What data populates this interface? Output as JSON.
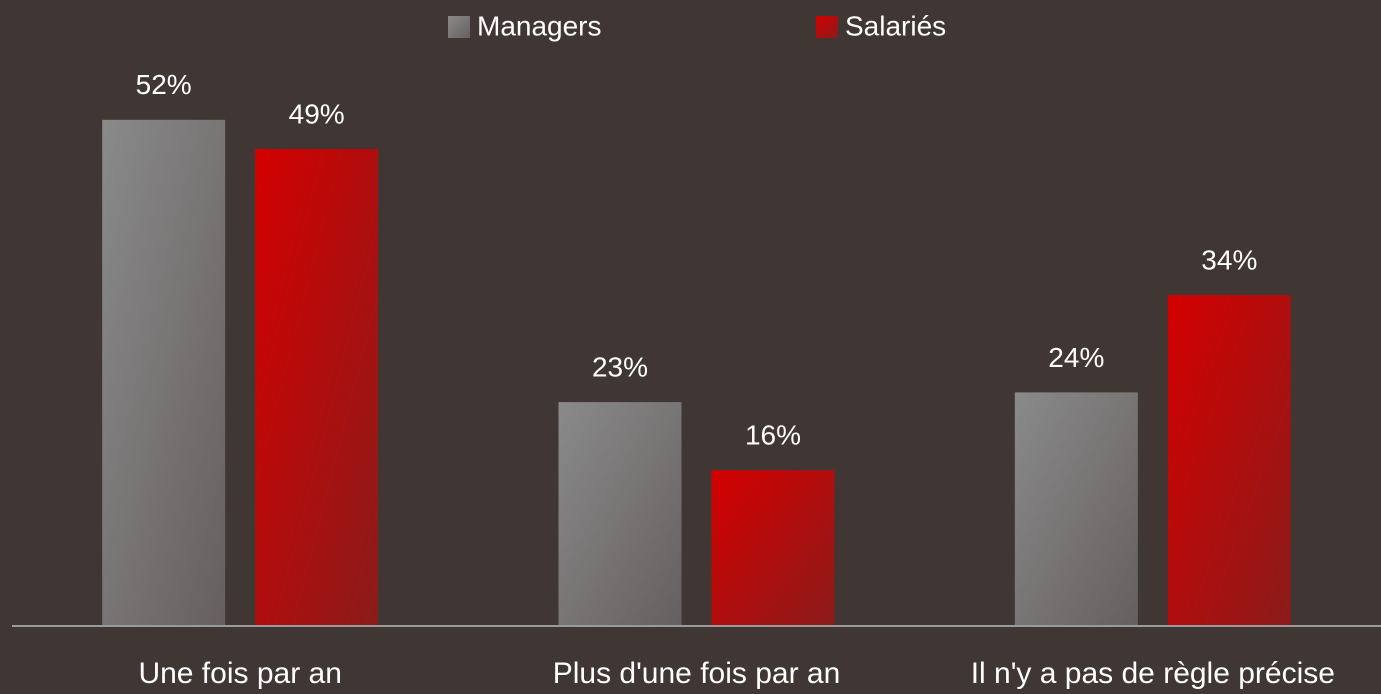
{
  "chart_data": {
    "type": "bar",
    "categories": [
      "Une fois par an",
      "Plus d'une fois par an",
      "Il n'y a pas de règle précise"
    ],
    "series": [
      {
        "name": "Managers",
        "color": "#8a8a8a",
        "values": [
          52,
          23,
          24
        ],
        "value_labels": [
          "52%",
          "23%",
          "24%"
        ]
      },
      {
        "name": "Salariés",
        "color": "#d40000",
        "values": [
          49,
          16,
          34
        ],
        "value_labels": [
          "49%",
          "16%",
          "34%"
        ]
      }
    ],
    "ylim": [
      0,
      64
    ],
    "legend": "top"
  }
}
